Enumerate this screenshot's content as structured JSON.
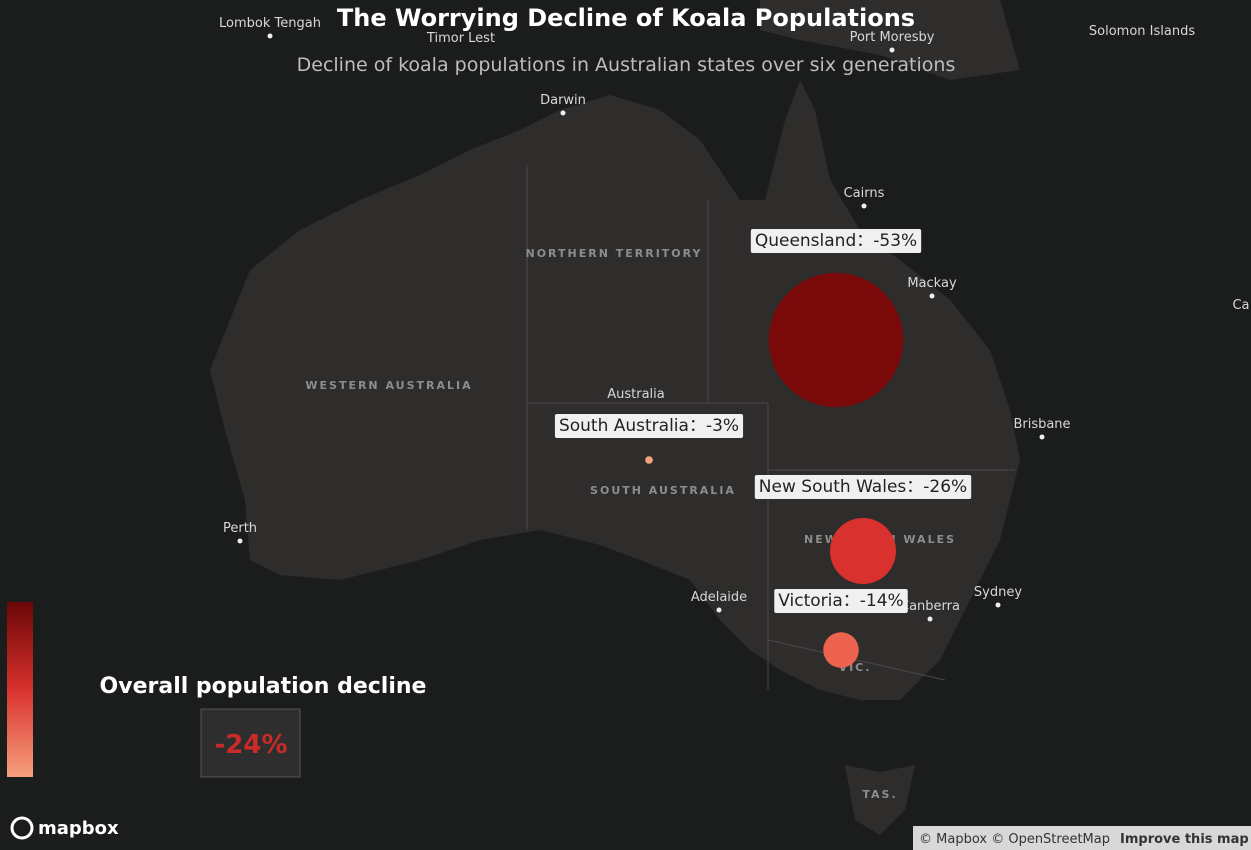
{
  "title": "The Worrying Decline of Koala Populations",
  "subtitle": "Decline of koala populations in Australian states over six generations",
  "states": [
    {
      "label": "Queensland：-53%",
      "value": -53,
      "color": "#7a0a0a"
    },
    {
      "label": "South Australia：-3%",
      "value": -3,
      "color": "#f7a07f"
    },
    {
      "label": "New South Wales：-26%",
      "value": -26,
      "color": "#d9312d"
    },
    {
      "label": "Victoria：-14%",
      "value": -14,
      "color": "#ee6250"
    }
  ],
  "overall": {
    "title": "Overall population decline",
    "value_label": "-24%"
  },
  "places": [
    "Lombok Tengah",
    "Timor Lest",
    "Port Moresby",
    "Solomon Islands",
    "Darwin",
    "Cairns",
    "NORTHERN TERRITORY",
    "Mackay",
    "WESTERN AUSTRALIA",
    "Australia",
    "Brisbane",
    "SOUTH AUSTRALIA",
    "Perth",
    "NEW SOUTH WALES",
    "Sydney",
    "Adelaide",
    "Canberra",
    "VIC.",
    "TAS.",
    "Ca"
  ],
  "logo": "mapbox",
  "attribution": "© Mapbox © OpenStreetMap",
  "improve": "Improve this map"
}
